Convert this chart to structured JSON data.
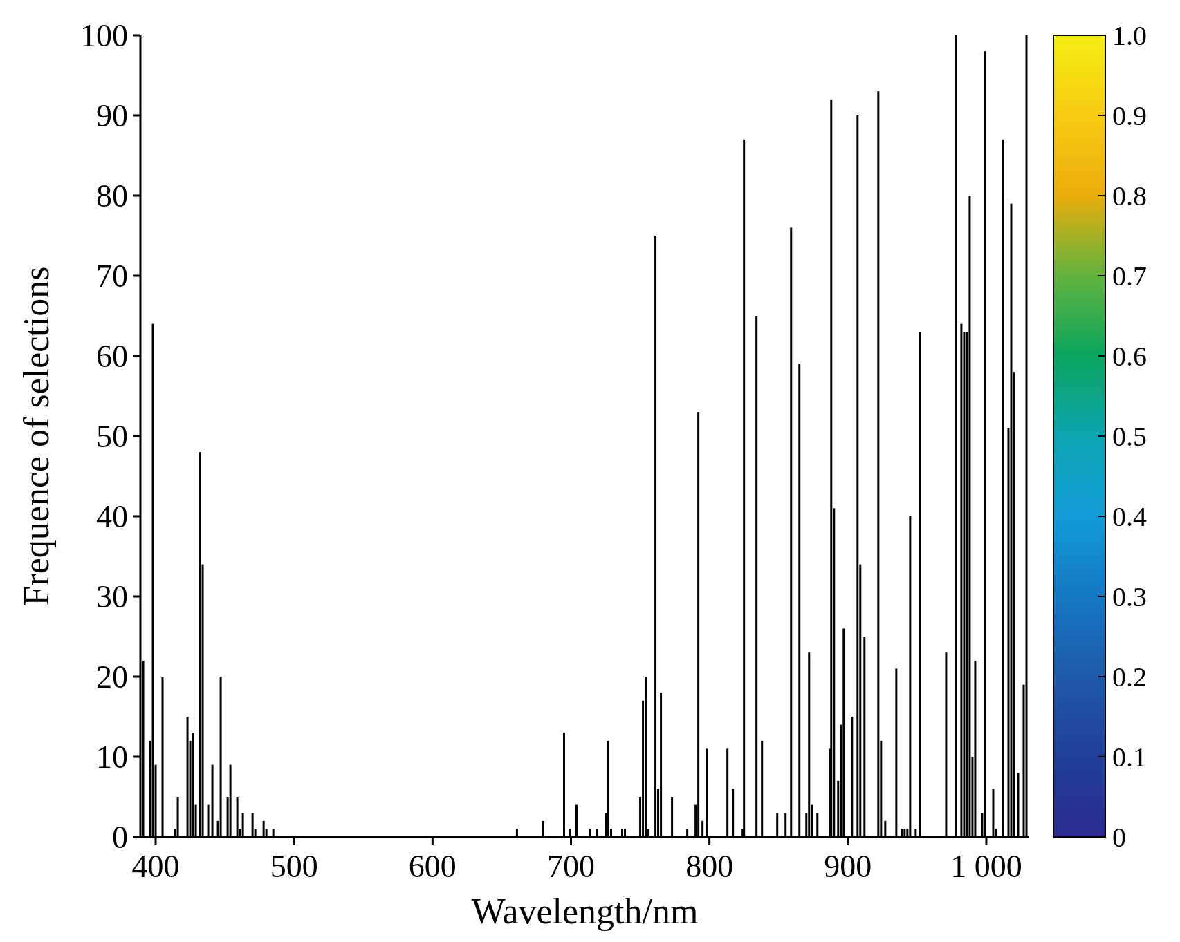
{
  "chart_data": {
    "type": "bar",
    "xlabel": "Wavelength/nm",
    "ylabel": "Frequence of selections",
    "color": "#000000",
    "x": [
      391,
      396,
      398,
      400,
      405,
      414,
      416,
      423,
      425,
      427,
      429,
      432,
      434,
      438,
      441,
      445,
      447,
      452,
      454,
      459,
      461,
      463,
      470,
      472,
      478,
      480,
      485,
      661,
      680,
      695,
      699,
      704,
      714,
      719,
      725,
      727,
      729,
      737,
      739,
      750,
      752,
      754,
      756,
      761,
      763,
      765,
      773,
      784,
      790,
      792,
      795,
      798,
      813,
      817,
      824,
      825,
      834,
      838,
      849,
      855,
      859,
      865,
      870,
      872,
      874,
      878,
      887,
      888,
      890,
      893,
      895,
      897,
      903,
      907,
      909,
      912,
      922,
      924,
      927,
      935,
      939,
      941,
      943,
      945,
      949,
      952,
      971,
      978,
      982,
      984,
      986,
      988,
      990,
      992,
      997,
      999,
      1005,
      1007,
      1012,
      1016,
      1018,
      1020,
      1023,
      1027,
      1029
    ],
    "values": [
      22,
      12,
      64,
      9,
      20,
      1,
      5,
      15,
      12,
      13,
      4,
      48,
      34,
      4,
      9,
      2,
      20,
      5,
      9,
      5,
      1,
      3,
      3,
      1,
      2,
      1,
      1,
      1,
      2,
      13,
      1,
      4,
      1,
      1,
      3,
      12,
      1,
      1,
      1,
      5,
      17,
      20,
      1,
      75,
      6,
      18,
      5,
      1,
      4,
      53,
      2,
      11,
      11,
      6,
      1,
      87,
      65,
      12,
      3,
      3,
      76,
      59,
      3,
      23,
      4,
      3,
      11,
      92,
      41,
      7,
      14,
      26,
      15,
      90,
      34,
      25,
      93,
      12,
      2,
      21,
      1,
      1,
      1,
      40,
      1,
      63,
      23,
      100,
      64,
      63,
      63,
      80,
      10,
      22,
      3,
      98,
      6,
      1,
      87,
      51,
      79,
      58,
      8,
      19,
      100
    ],
    "xlim": [
      389,
      1031
    ],
    "xticks": [
      400,
      500,
      600,
      700,
      800,
      900,
      {
        "value": 1000,
        "label": "1 000"
      }
    ],
    "ylim": [
      0,
      100
    ],
    "yticks": [
      0,
      10,
      20,
      30,
      40,
      50,
      60,
      70,
      80,
      90,
      100
    ],
    "clim": [
      0,
      1
    ],
    "cticks": [
      0,
      {
        "value": 0.1,
        "label": "0.1"
      },
      {
        "value": 0.2,
        "label": "0.2"
      },
      {
        "value": 0.3,
        "label": "0.3"
      },
      {
        "value": 0.4,
        "label": "0.4"
      },
      {
        "value": 0.5,
        "label": "0.5"
      },
      {
        "value": 0.6,
        "label": "0.6"
      },
      {
        "value": 0.7,
        "label": "0.7"
      },
      {
        "value": 0.8,
        "label": "0.8"
      },
      {
        "value": 0.9,
        "label": "0.9"
      },
      {
        "value": 1,
        "label": "1.0"
      }
    ],
    "grid": false
  }
}
